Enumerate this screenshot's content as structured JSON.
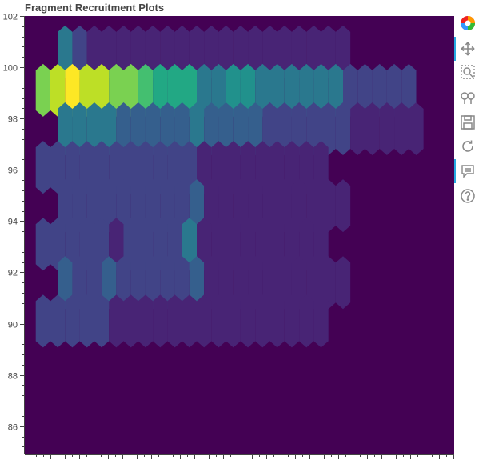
{
  "title": "Fragment Recruitment Plots",
  "toolbar": {
    "tools": [
      {
        "name": "bokeh-logo-icon",
        "active": false
      },
      {
        "name": "pan-tool-icon",
        "active": true
      },
      {
        "name": "box-zoom-tool-icon",
        "active": false
      },
      {
        "name": "wheel-zoom-tool-icon",
        "active": false
      },
      {
        "name": "save-tool-icon",
        "active": false
      },
      {
        "name": "reset-tool-icon",
        "active": false
      },
      {
        "name": "hover-tool-icon",
        "active": true
      },
      {
        "name": "help-tool-icon",
        "active": false
      }
    ]
  },
  "colors": {
    "background": "#440154",
    "palette": [
      "#440154",
      "#482475",
      "#414487",
      "#355f8d",
      "#2a788e",
      "#21918c",
      "#22a884",
      "#44bf70",
      "#7ad151",
      "#bddf26",
      "#fde725"
    ]
  },
  "chart_data": {
    "type": "heatmap",
    "title": "Fragment Recruitment Plots",
    "xlabel": "",
    "ylabel": "",
    "ylim": [
      84.9,
      102
    ],
    "yticks": [
      86,
      88,
      90,
      92,
      94,
      96,
      98,
      100,
      102
    ],
    "xticks_labeled": false,
    "grid": false,
    "legend": "none",
    "note_cell_value_scale": "relative count, 0-10 on viridis colormap",
    "bins": {
      "row_centers_y": [
        100.6,
        99.1,
        97.6,
        96.1,
        94.6,
        93.1,
        91.6,
        90.1
      ],
      "columns": 27,
      "values": [
        [
          0,
          4,
          2,
          1,
          1,
          1,
          1,
          1,
          1,
          1,
          1,
          1,
          1,
          1,
          1,
          1,
          1,
          1,
          1,
          1,
          1,
          0,
          0,
          0,
          0,
          0,
          0
        ],
        [
          8,
          9,
          10,
          9,
          9,
          8,
          8,
          7,
          6,
          6,
          6,
          4,
          4,
          5,
          5,
          4,
          4,
          4,
          4,
          4,
          4,
          2,
          2,
          2,
          2,
          2,
          0
        ],
        [
          0,
          4,
          4,
          4,
          4,
          3,
          3,
          3,
          3,
          3,
          4,
          3,
          3,
          3,
          3,
          2,
          2,
          2,
          2,
          2,
          2,
          1,
          1,
          1,
          1,
          1,
          0
        ],
        [
          2,
          2,
          2,
          2,
          2,
          2,
          2,
          2,
          2,
          2,
          2,
          1,
          1,
          1,
          1,
          1,
          1,
          1,
          1,
          1,
          0,
          0,
          0,
          0,
          0,
          0,
          0
        ],
        [
          0,
          2,
          2,
          2,
          2,
          2,
          2,
          2,
          2,
          2,
          3,
          1,
          1,
          1,
          1,
          1,
          1,
          1,
          1,
          1,
          1,
          0,
          0,
          0,
          0,
          0,
          0
        ],
        [
          2,
          2,
          2,
          2,
          2,
          1,
          2,
          2,
          2,
          2,
          4,
          1,
          1,
          1,
          1,
          1,
          1,
          1,
          1,
          1,
          0,
          0,
          0,
          0,
          0,
          0,
          0
        ],
        [
          0,
          3,
          2,
          2,
          3,
          2,
          2,
          2,
          2,
          2,
          3,
          1,
          1,
          1,
          1,
          1,
          1,
          1,
          1,
          1,
          1,
          0,
          0,
          0,
          0,
          0,
          0
        ],
        [
          2,
          2,
          2,
          2,
          2,
          1,
          1,
          1,
          1,
          1,
          1,
          1,
          1,
          1,
          1,
          1,
          1,
          1,
          1,
          1,
          0,
          0,
          0,
          0,
          0,
          0,
          0
        ]
      ]
    }
  }
}
